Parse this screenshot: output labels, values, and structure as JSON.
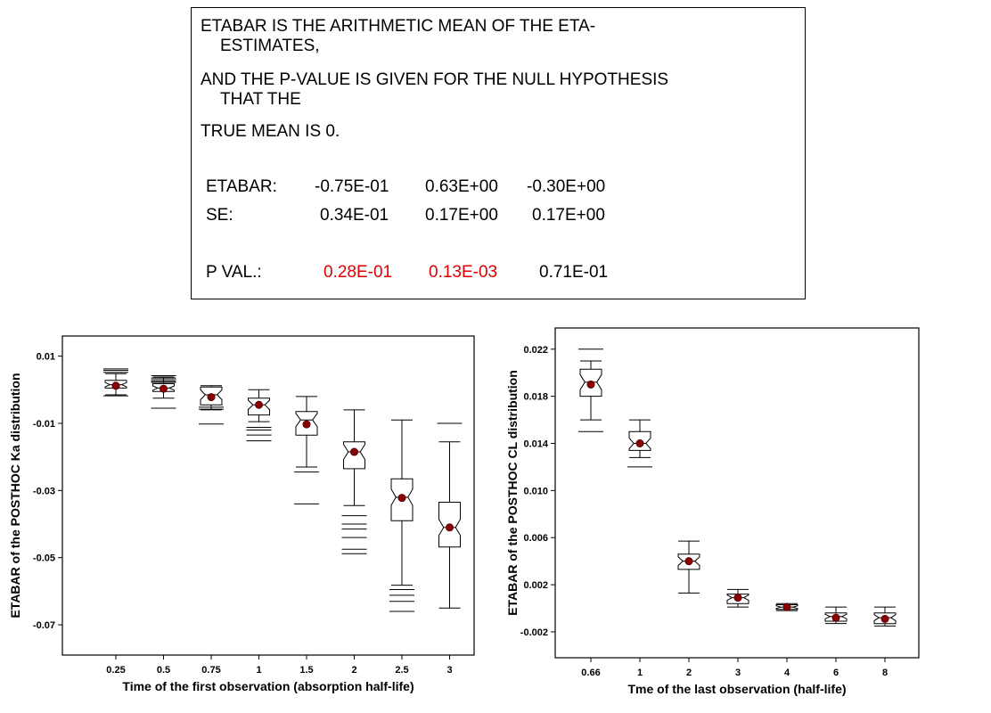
{
  "textbox": {
    "line1": "ETABAR IS THE ARITHMETIC MEAN OF THE ETA-",
    "line1b": "ESTIMATES,",
    "line2": "AND THE P-VALUE IS GIVEN FOR THE NULL HYPOTHESIS",
    "line2b": "THAT THE",
    "line3": "TRUE MEAN IS 0.",
    "etabar_label": "ETABAR:",
    "etabar_values": [
      "-0.75E-01",
      "0.63E+00",
      "-0.30E+00"
    ],
    "se_label": "SE:",
    "se_values": [
      "0.34E-01",
      "0.17E+00",
      "0.17E+00"
    ],
    "pval_label": "P VAL.:",
    "pval_values": [
      "0.28E-01",
      "0.13E-03",
      "0.71E-01"
    ],
    "highlight_color": "#e00000"
  },
  "chart_data": [
    {
      "type": "box",
      "xlabel": "Time of the first observation (absorption half-life)",
      "ylabel": "ETABAR of the POSTHOC Ka distribution",
      "ylim": [
        -0.079,
        0.016
      ],
      "yticks": [
        "0.01",
        "-0.01",
        "-0.03",
        "-0.05",
        "-0.07"
      ],
      "ytick_values": [
        0.01,
        -0.01,
        -0.03,
        -0.05,
        -0.07
      ],
      "categories": [
        "0.25",
        "0.5",
        "0.75",
        "1",
        "1.5",
        "2",
        "2.5",
        "3"
      ],
      "boxes": [
        {
          "q1": 0.0005,
          "median": 0.0015,
          "q3": 0.0028,
          "whisker_low": -0.0015,
          "whisker_high": 0.0048,
          "mean": 0.0012,
          "outliers": [
            0.0062,
            0.0058,
            0.0052,
            -0.0018
          ]
        },
        {
          "q1": -0.0005,
          "median": 0.0005,
          "q3": 0.0018,
          "whisker_low": -0.0025,
          "whisker_high": 0.0038,
          "mean": 0.0003,
          "outliers": [
            0.0042,
            0.0035,
            0.003,
            0.0025,
            0.0022,
            -0.0055
          ]
        },
        {
          "q1": -0.0045,
          "median": -0.0015,
          "q3": 0.0008,
          "whisker_low": -0.006,
          "whisker_high": 0.0012,
          "mean": -0.0022,
          "outliers": [
            -0.0052,
            -0.0058,
            -0.0102
          ]
        },
        {
          "q1": -0.0075,
          "median": -0.0045,
          "q3": -0.0025,
          "whisker_low": -0.0095,
          "whisker_high": 0.0,
          "mean": -0.0045,
          "outliers": [
            -0.0112,
            -0.012,
            -0.0135,
            -0.0152
          ]
        },
        {
          "q1": -0.0135,
          "median": -0.009,
          "q3": -0.0065,
          "whisker_low": -0.023,
          "whisker_high": -0.002,
          "mean": -0.0103,
          "outliers": [
            -0.0245,
            -0.034
          ]
        },
        {
          "q1": -0.0235,
          "median": -0.0185,
          "q3": -0.0155,
          "whisker_low": -0.0345,
          "whisker_high": -0.006,
          "mean": -0.0185,
          "outliers": [
            -0.0375,
            -0.04,
            -0.0415,
            -0.044,
            -0.0475,
            -0.0488
          ]
        },
        {
          "q1": -0.039,
          "median": -0.032,
          "q3": -0.0265,
          "whisker_low": -0.0582,
          "whisker_high": -0.009,
          "mean": -0.0322,
          "outliers": [
            -0.0595,
            -0.0612,
            -0.063,
            -0.066
          ]
        },
        {
          "q1": -0.0468,
          "median": -0.041,
          "q3": -0.0335,
          "whisker_low": -0.065,
          "whisker_high": -0.0155,
          "mean": -0.041,
          "outliers": [
            -0.01
          ]
        }
      ],
      "mean_marker_color": "#8b0000"
    },
    {
      "type": "box",
      "xlabel": "Tme of the last observation (half-life)",
      "ylabel": "ETABAR of the POSTHOC CL distribution",
      "ylim": [
        -0.0042,
        0.0238
      ],
      "yticks": [
        "0.022",
        "0.018",
        "0.014",
        "0.010",
        "0.006",
        "0.002",
        "-0.002"
      ],
      "ytick_values": [
        0.022,
        0.018,
        0.014,
        0.01,
        0.006,
        0.002,
        -0.002
      ],
      "categories": [
        "0.66",
        "1",
        "2",
        "3",
        "4",
        "6",
        "8"
      ],
      "boxes": [
        {
          "q1": 0.018,
          "median": 0.0192,
          "q3": 0.0203,
          "whisker_low": 0.016,
          "whisker_high": 0.021,
          "mean": 0.019,
          "outliers": [
            0.022,
            0.015
          ]
        },
        {
          "q1": 0.0134,
          "median": 0.014,
          "q3": 0.015,
          "whisker_low": 0.0128,
          "whisker_high": 0.016,
          "mean": 0.014,
          "outliers": [
            0.012
          ]
        },
        {
          "q1": 0.0033,
          "median": 0.004,
          "q3": 0.0046,
          "whisker_low": 0.0013,
          "whisker_high": 0.0057,
          "mean": 0.004,
          "outliers": []
        },
        {
          "q1": 0.0004,
          "median": 0.0009,
          "q3": 0.0012,
          "whisker_low": 0.0001,
          "whisker_high": 0.0016,
          "mean": 0.0009,
          "outliers": []
        },
        {
          "q1": -0.0001,
          "median": 0.0001,
          "q3": 0.0003,
          "whisker_low": -0.0002,
          "whisker_high": 0.0004,
          "mean": 0.0001,
          "outliers": []
        },
        {
          "q1": -0.0011,
          "median": -0.0007,
          "q3": -0.0004,
          "whisker_low": -0.0013,
          "whisker_high": 0.0001,
          "mean": -0.0008,
          "outliers": []
        },
        {
          "q1": -0.0013,
          "median": -0.0008,
          "q3": -0.0004,
          "whisker_low": -0.0015,
          "whisker_high": 0.0001,
          "mean": -0.0009,
          "outliers": []
        }
      ],
      "mean_marker_color": "#8b0000"
    }
  ]
}
